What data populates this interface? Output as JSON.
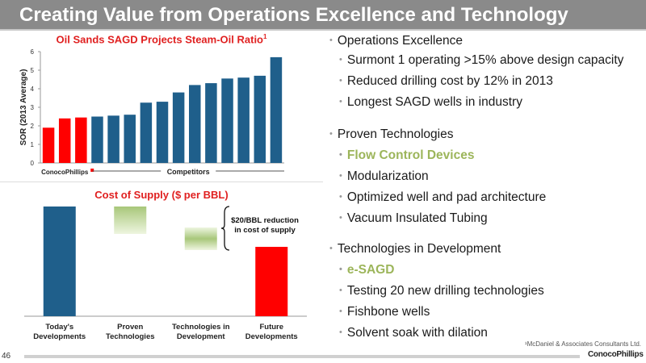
{
  "title": "Creating Value from Operations Excellence and Technology",
  "page_number": "46",
  "footnote": "¹McDaniel & Associates Consultants Ltd.",
  "brand": "ConocoPhillips",
  "colors": {
    "conoco": "#ff0000",
    "competitor": "#1f5f8b",
    "green": "#9cb55a"
  },
  "chart_data": [
    {
      "type": "bar",
      "title": "Oil Sands SAGD Projects Steam-Oil Ratio",
      "title_sup": "1",
      "ylabel": "SOR (2013 Average)",
      "ylim": [
        0,
        6
      ],
      "yticks": [
        "0",
        "1",
        "2",
        "3",
        "4",
        "5",
        "6"
      ],
      "grid": false,
      "group_labels": {
        "conoco": "ConocoPhillips",
        "competitors": "Competitors"
      },
      "series": [
        {
          "name": "ConocoPhillips",
          "values": [
            1.9,
            2.4,
            2.45
          ]
        },
        {
          "name": "Competitors",
          "values": [
            2.5,
            2.55,
            2.6,
            3.25,
            3.3,
            3.8,
            4.2,
            4.3,
            4.55,
            4.6,
            4.7,
            5.7
          ]
        }
      ]
    },
    {
      "type": "bar",
      "title": "Cost of Supply ($ per BBL)",
      "categories": [
        "Today's Developments",
        "Proven Technologies",
        "Technologies in Development",
        "Future Developments"
      ],
      "annotation": "$20/BBL reduction in cost of supply",
      "annotation_lines": [
        "$20/BBL reduction",
        "in cost of supply"
      ]
    }
  ],
  "bullets": [
    {
      "text": "Operations Excellence",
      "level": 1
    },
    {
      "text": "Surmont 1 operating >15% above design capacity",
      "level": 2
    },
    {
      "text": "Reduced drilling cost by 12% in 2013",
      "level": 2
    },
    {
      "text": "Longest SAGD wells in industry",
      "level": 2
    },
    {
      "text": "Proven Technologies",
      "level": 1
    },
    {
      "text": "Flow Control Devices",
      "level": 2,
      "highlight": true
    },
    {
      "text": "Modularization",
      "level": 2
    },
    {
      "text": "Optimized well and pad architecture",
      "level": 2
    },
    {
      "text": "Vacuum Insulated Tubing",
      "level": 2
    },
    {
      "text": "Technologies in Development",
      "level": 1
    },
    {
      "text": "e-SAGD",
      "level": 2,
      "highlight": true
    },
    {
      "text": "Testing 20 new drilling technologies",
      "level": 2
    },
    {
      "text": "Fishbone wells",
      "level": 2
    },
    {
      "text": "Solvent soak with dilation",
      "level": 2
    }
  ]
}
